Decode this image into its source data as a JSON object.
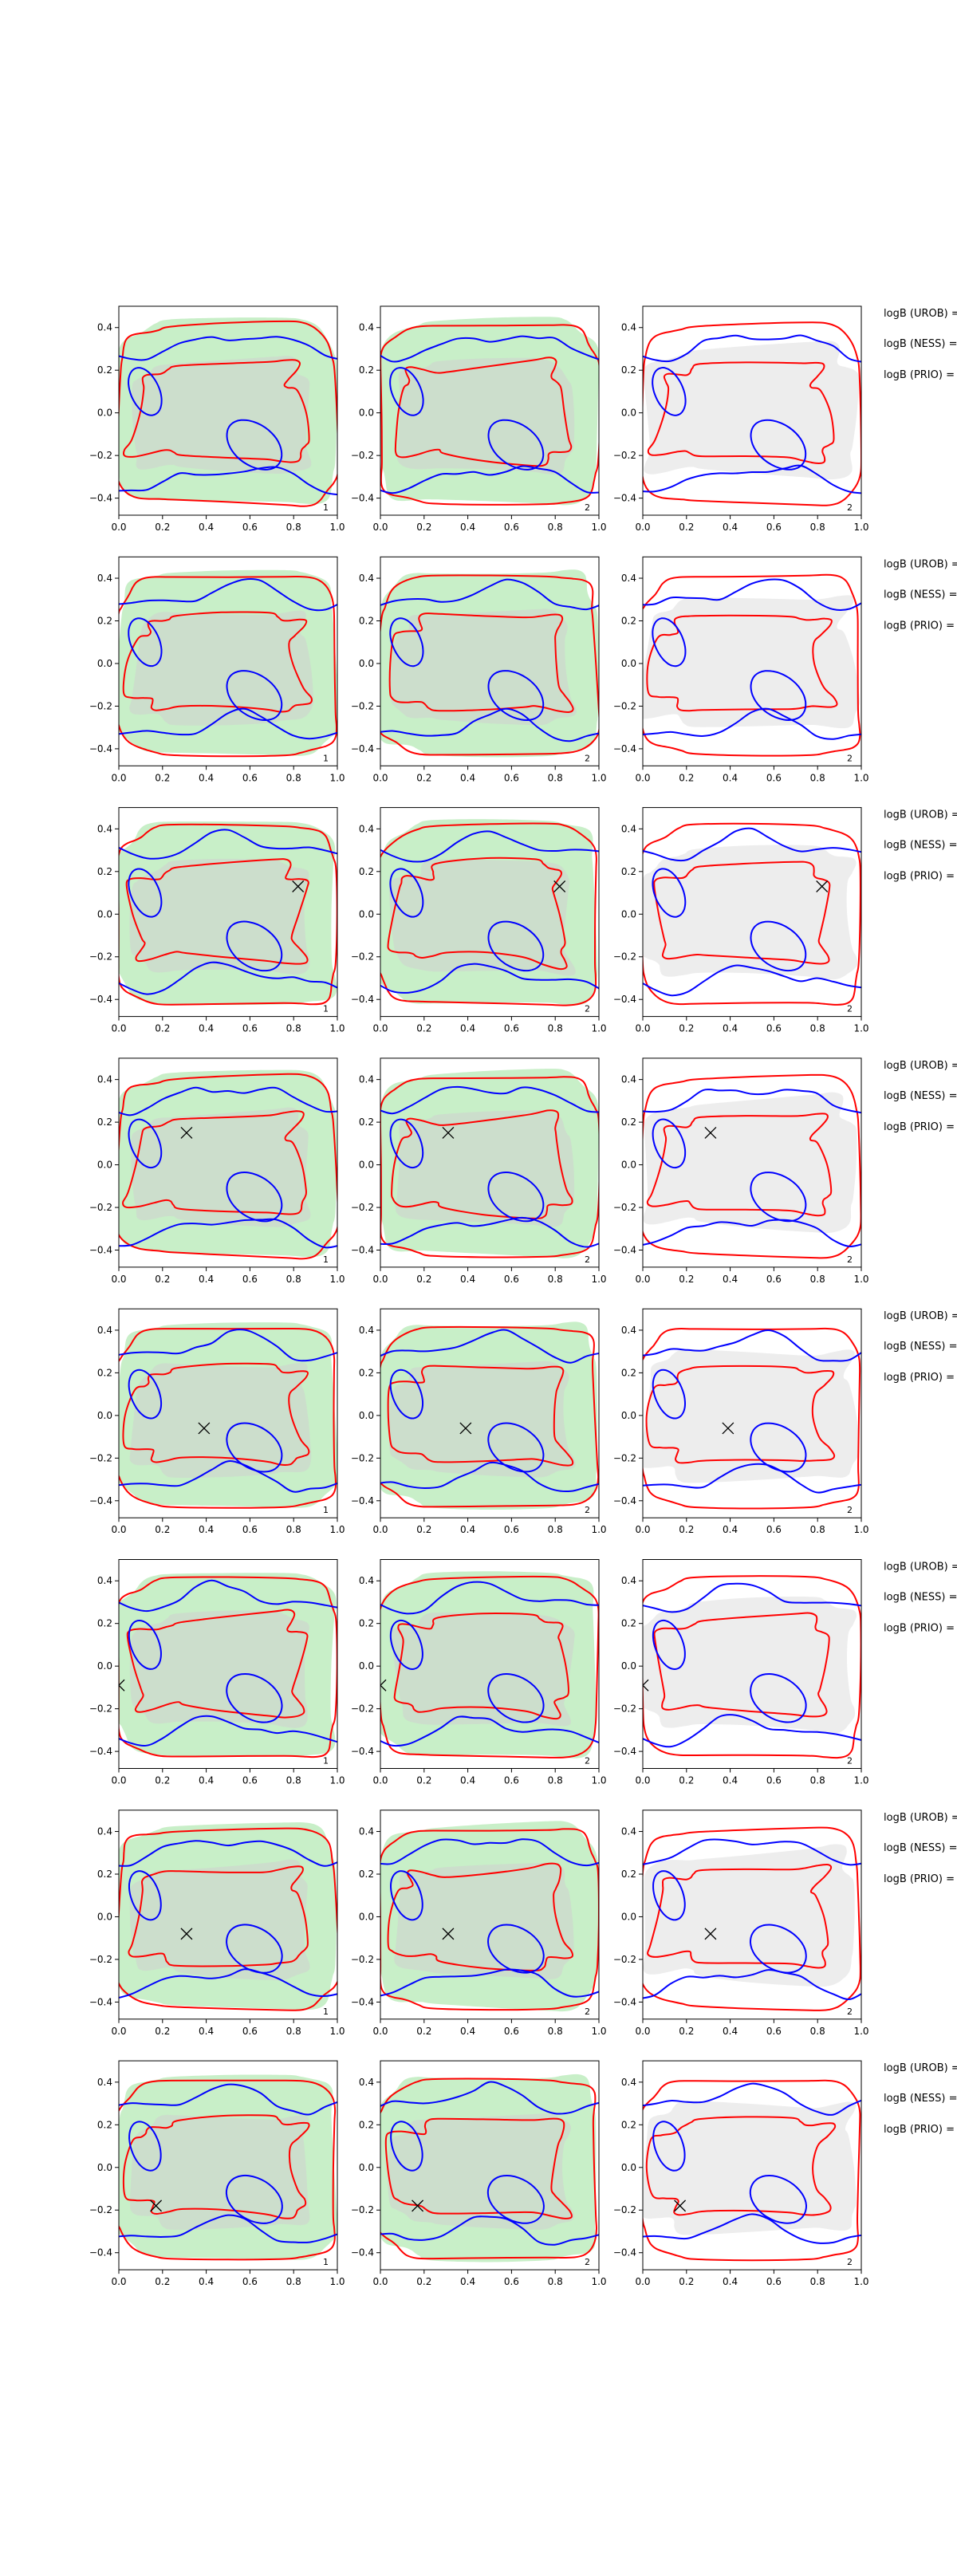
{
  "chart_data": {
    "type": "contour",
    "layout": {
      "rows": 8,
      "cols": 3
    },
    "axes": {
      "xlim": [
        0.0,
        1.0
      ],
      "ylim": [
        -0.48,
        0.5
      ],
      "xticks": [
        0.0,
        0.2,
        0.4,
        0.6,
        0.8,
        1.0
      ],
      "xtick_labels": [
        "0.0",
        "0.2",
        "0.4",
        "0.6",
        "0.8",
        "1.0"
      ],
      "yticks": [
        -0.4,
        -0.2,
        0.0,
        0.2,
        0.4
      ],
      "ytick_labels": [
        "−0.4",
        "−0.2",
        "0.0",
        "0.2",
        "0.4"
      ]
    },
    "panel_index_labels": [
      "1",
      "2",
      "2"
    ],
    "row_labels": [
      "logB (UROB) =",
      "logB (NESS) =",
      "logB (PRIO) ="
    ],
    "colors": {
      "blue": "#0000ff",
      "red": "#ff0000",
      "green_fill": "#c8efc8",
      "grey_fill": "#cfcfcf"
    },
    "rows": [
      {
        "marker": null
      },
      {
        "marker": null
      },
      {
        "marker": [
          0.82,
          0.13
        ]
      },
      {
        "marker": [
          0.31,
          0.15
        ]
      },
      {
        "marker": [
          0.39,
          -0.06
        ]
      },
      {
        "marker": [
          0.0,
          -0.09
        ]
      },
      {
        "marker": [
          0.31,
          -0.08
        ]
      },
      {
        "marker": [
          0.17,
          -0.18
        ]
      }
    ]
  }
}
